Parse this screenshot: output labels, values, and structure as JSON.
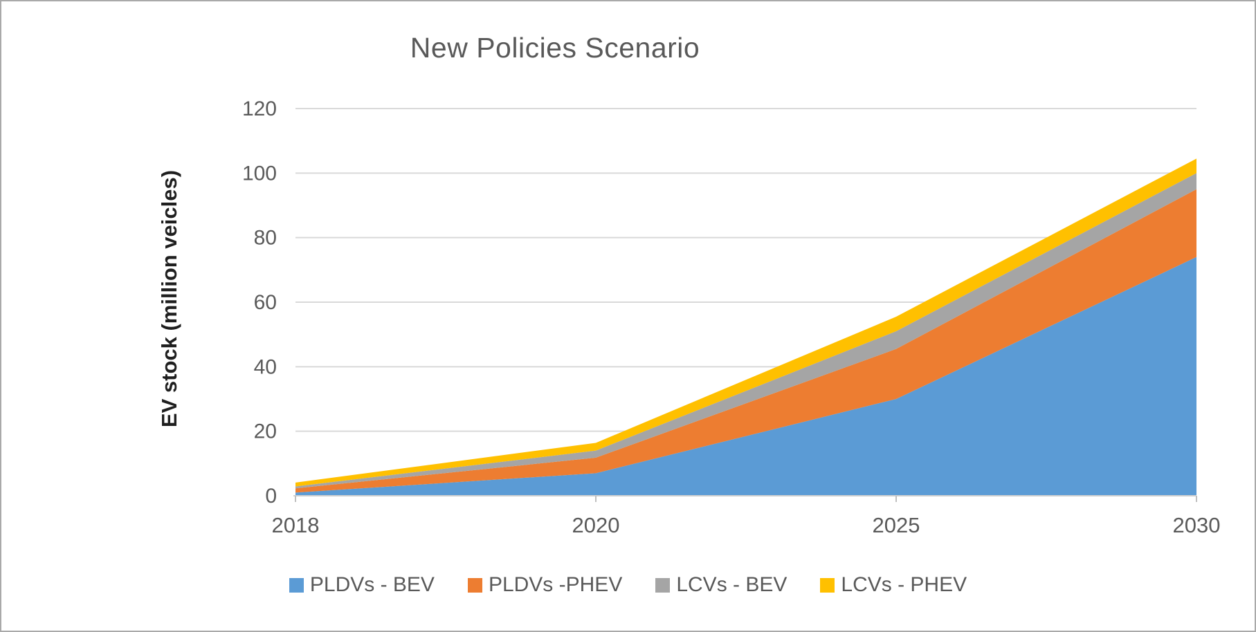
{
  "chart_data": {
    "type": "area",
    "stacked": true,
    "title": "New Policies Scenario",
    "xlabel": "",
    "ylabel": "EV stock (million veicles)",
    "categories": [
      "2018",
      "2020",
      "2025",
      "2030"
    ],
    "series": [
      {
        "name": "PLDVs - BEV",
        "color": "#5B9BD5",
        "values": [
          1.0,
          7.0,
          30.0,
          74.0
        ]
      },
      {
        "name": "PLDVs -PHEV",
        "color": "#ED7D31",
        "values": [
          1.3,
          4.8,
          15.5,
          21.0
        ]
      },
      {
        "name": "LCVs - BEV",
        "color": "#A5A5A5",
        "values": [
          0.6,
          2.2,
          5.5,
          5.0
        ]
      },
      {
        "name": "LCVs - PHEV",
        "color": "#FFC000",
        "values": [
          1.2,
          2.4,
          4.5,
          4.5
        ]
      }
    ],
    "ylim": [
      0,
      120
    ],
    "ytick_step": 20,
    "grid": true,
    "legend_position": "bottom"
  },
  "style": {
    "title_color": "#595959",
    "tick_label_color": "#595959",
    "grid_color": "#D9D9D9",
    "axis_line_color": "#D0D0D0",
    "tick_mark_color": "#BFBFBF",
    "y_title_color": "#1F1F1F",
    "background": "#FFFFFF",
    "border_color": "#A9A9A9"
  }
}
